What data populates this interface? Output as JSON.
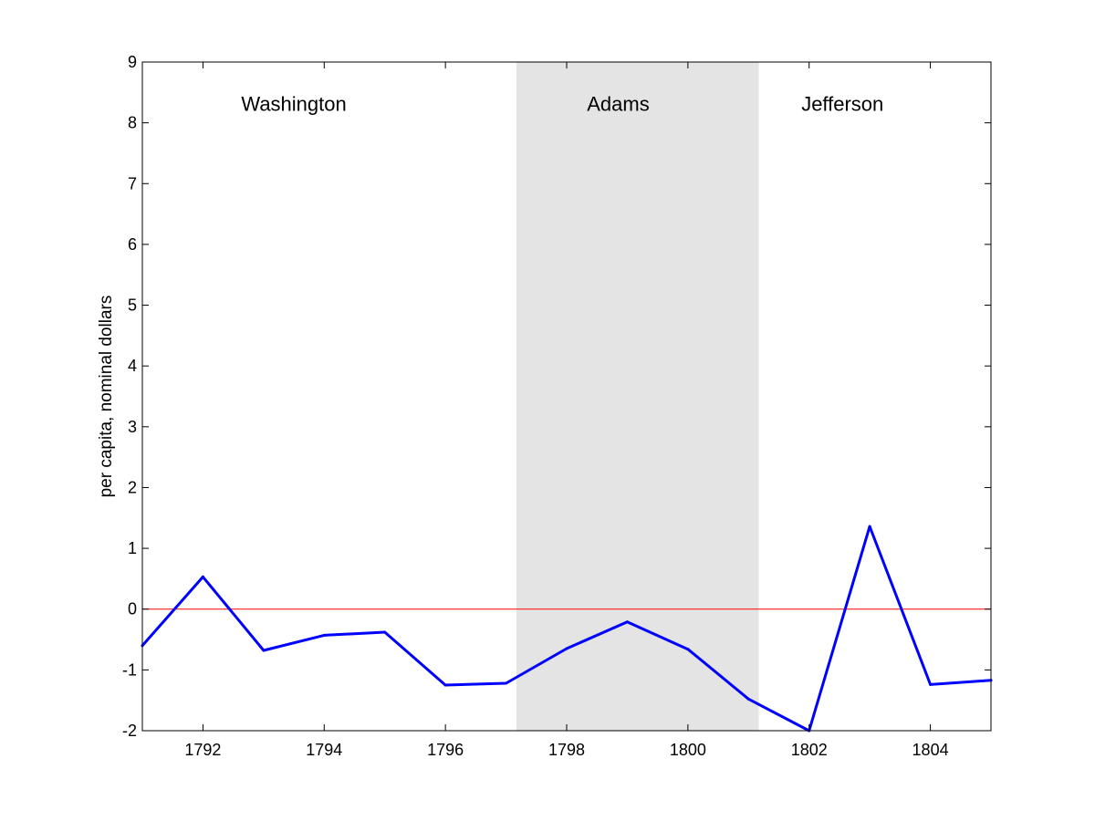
{
  "chart_data": {
    "type": "line",
    "title": "",
    "xlabel": "",
    "ylabel": "per capita, nominal dollars",
    "xlim": [
      1791,
      1805
    ],
    "ylim": [
      -2,
      9
    ],
    "xticks": [
      1792,
      1794,
      1796,
      1798,
      1800,
      1802,
      1804
    ],
    "yticks": [
      -2,
      -1,
      0,
      1,
      2,
      3,
      4,
      5,
      6,
      7,
      8,
      9
    ],
    "grid": false,
    "legend": "none",
    "series": [
      {
        "color": "#0000ff",
        "x": [
          1791,
          1792,
          1793,
          1794,
          1795,
          1796,
          1797,
          1798,
          1799,
          1800,
          1801,
          1802,
          1803,
          1804,
          1805
        ],
        "y": [
          -0.6,
          0.53,
          -0.68,
          -0.43,
          -0.38,
          -1.25,
          -1.22,
          -0.65,
          -0.21,
          -0.66,
          -1.48,
          -2.0,
          1.36,
          -1.24,
          -1.17
        ]
      }
    ],
    "reference_line": {
      "y": 0,
      "color": "#ff0000"
    },
    "shaded_regions": [
      {
        "x_start": 1797.17,
        "x_end": 1801.17,
        "color": "#e4e4e4"
      }
    ],
    "annotations": [
      {
        "text": "Washington",
        "x": 1793.5,
        "y": 8.2
      },
      {
        "text": "Adams",
        "x": 1798.85,
        "y": 8.2
      },
      {
        "text": "Jefferson",
        "x": 1802.55,
        "y": 8.2
      }
    ]
  }
}
